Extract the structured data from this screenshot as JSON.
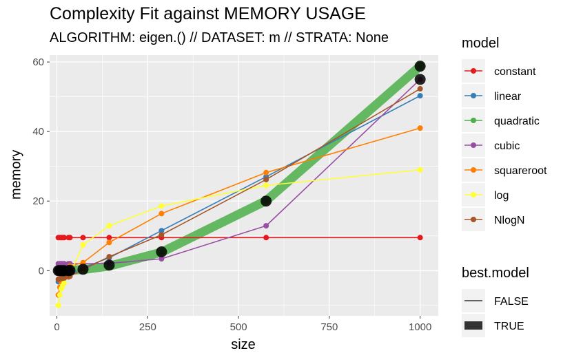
{
  "chart_data": {
    "type": "line",
    "title": "Complexity Fit against MEMORY USAGE",
    "subtitle": "ALGORITHM: eigen.() // DATASET: m // STRATA: None",
    "xlabel": "size",
    "ylabel": "memory",
    "xlim": [
      -20,
      1050
    ],
    "ylim": [
      -13,
      62
    ],
    "x_ticks": [
      0,
      250,
      500,
      750,
      1000
    ],
    "x_tick_labels": [
      "0",
      "250",
      "500",
      "750",
      "1000"
    ],
    "y_ticks": [
      0,
      20,
      40,
      60
    ],
    "y_tick_labels": [
      "0",
      "20",
      "40",
      "60"
    ],
    "grid": true,
    "x": [
      4,
      8,
      12,
      16,
      20,
      32,
      36,
      72,
      144,
      288,
      576,
      1000
    ],
    "series": [
      {
        "name": "constant",
        "color": "#E41A1C",
        "best": false,
        "values": [
          9.5,
          9.5,
          9.5,
          9.5,
          9.5,
          9.5,
          9.5,
          9.5,
          9.5,
          9.5,
          9.5,
          9.5
        ]
      },
      {
        "name": "linear",
        "color": "#377EB8",
        "best": false,
        "values": [
          -3.2,
          -2.8,
          -2.6,
          -2.4,
          -2.2,
          -1.6,
          -1.2,
          0.8,
          3.7,
          11.5,
          27.0,
          50.3
        ]
      },
      {
        "name": "quadratic",
        "color": "#4DAF4A",
        "best": true,
        "values": [
          0.0,
          0.0,
          0.0,
          0.0,
          0.0,
          0.0,
          0.1,
          0.3,
          1.3,
          5.3,
          20.1,
          58.8
        ]
      },
      {
        "name": "cubic",
        "color": "#984EA3",
        "best": false,
        "values": [
          2.0,
          2.0,
          2.0,
          2.0,
          2.0,
          2.0,
          2.0,
          2.0,
          2.1,
          3.4,
          12.9,
          55.0
        ]
      },
      {
        "name": "squareroot",
        "color": "#FF7F00",
        "best": false,
        "values": [
          -7.0,
          -4.8,
          -3.3,
          -2.0,
          -1.0,
          0.8,
          1.3,
          2.3,
          8.1,
          16.4,
          28.2,
          41.0
        ]
      },
      {
        "name": "log",
        "color": "#FFFF33",
        "best": false,
        "values": [
          -10.0,
          -7.0,
          -5.2,
          -4.3,
          -3.5,
          -1.6,
          -1.0,
          7.4,
          12.9,
          18.6,
          24.5,
          29.0
        ]
      },
      {
        "name": "NlogN",
        "color": "#A65628",
        "best": false,
        "values": [
          -2.5,
          -2.4,
          -2.3,
          -2.2,
          -2.1,
          -1.8,
          -1.6,
          0.3,
          4.0,
          10.3,
          26.2,
          52.3
        ]
      }
    ],
    "observed": {
      "x": [
        4,
        8,
        12,
        16,
        20,
        32,
        36,
        72,
        144,
        288,
        576,
        1000,
        1000
      ],
      "y": [
        0.0,
        0.0,
        0.0,
        0.0,
        0.0,
        0.0,
        0.1,
        0.4,
        1.6,
        5.4,
        20.0,
        58.8,
        55.0
      ]
    },
    "legend": {
      "placement": "right",
      "model_title": "model",
      "best_title": "best.model",
      "best_labels": [
        "FALSE",
        "TRUE"
      ]
    },
    "panel_background": "#EBEBEB",
    "grid_color": "#FFFFFF"
  }
}
